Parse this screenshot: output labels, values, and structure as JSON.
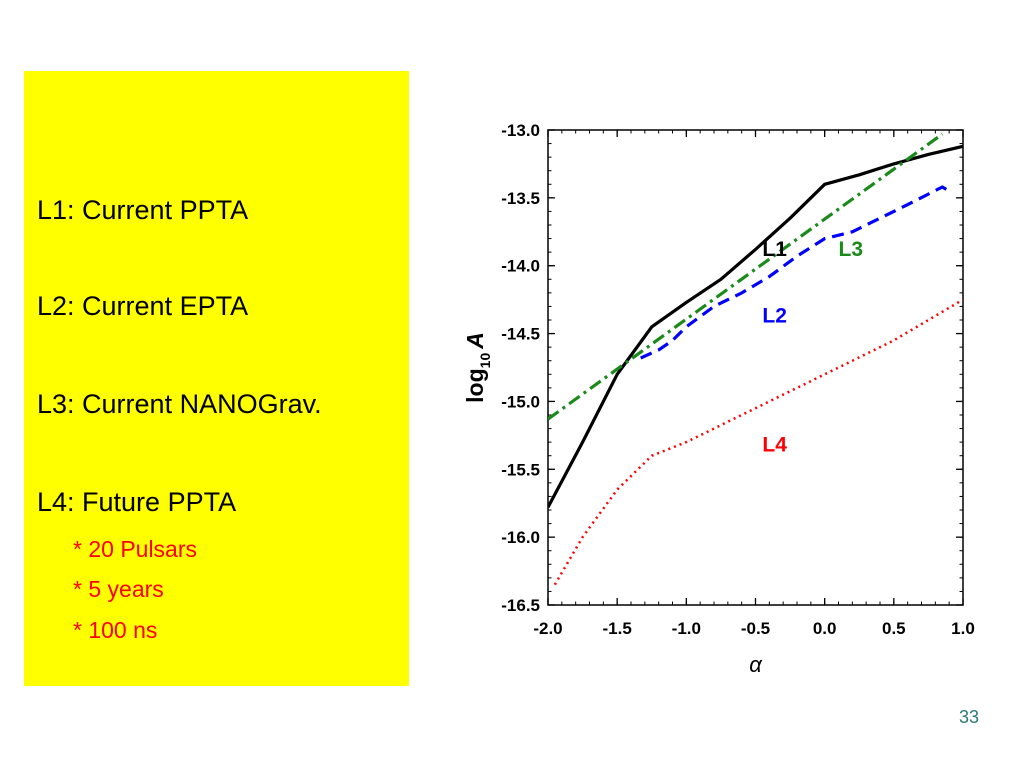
{
  "legend": {
    "lines": [
      "L1: Current PPTA",
      "L2: Current EPTA",
      "L3: Current NANOGrav.",
      "L4: Future PPTA"
    ],
    "sub_items": [
      "* 20 Pulsars",
      "* 5 years",
      "* 100 ns"
    ],
    "panel_color": "#ffff00",
    "sub_color": "#ff0000"
  },
  "slide_number": "33",
  "chart_data": {
    "type": "line",
    "xlabel": "α",
    "ylabel_main": "log",
    "ylabel_sub": "10",
    "ylabel_var": "A",
    "xlim": [
      -2.0,
      1.0
    ],
    "ylim": [
      -16.5,
      -13.0
    ],
    "x_ticks": [
      "-2.0",
      "-1.5",
      "-1.0",
      "-0.5",
      "0.0",
      "0.5",
      "1.0"
    ],
    "y_ticks": [
      "-13.0",
      "-13.5",
      "-14.0",
      "-14.5",
      "-15.0",
      "-15.5",
      "-16.0",
      "-16.5"
    ],
    "grid": false,
    "series": [
      {
        "name": "L1",
        "color": "#000000",
        "style": "solid",
        "points": [
          [
            -2.0,
            -15.78
          ],
          [
            -1.75,
            -15.3
          ],
          [
            -1.5,
            -14.8
          ],
          [
            -1.25,
            -14.45
          ],
          [
            -1.0,
            -14.27
          ],
          [
            -0.75,
            -14.1
          ],
          [
            -0.5,
            -13.88
          ],
          [
            -0.25,
            -13.65
          ],
          [
            0.0,
            -13.4
          ],
          [
            0.25,
            -13.33
          ],
          [
            0.5,
            -13.25
          ],
          [
            0.75,
            -13.18
          ],
          [
            1.0,
            -13.12
          ]
        ]
      },
      {
        "name": "L2",
        "color": "#0000ff",
        "style": "dashed",
        "points": [
          [
            -1.33,
            -14.68
          ],
          [
            -1.2,
            -14.62
          ],
          [
            -1.1,
            -14.55
          ],
          [
            -1.0,
            -14.45
          ],
          [
            -0.8,
            -14.3
          ],
          [
            -0.6,
            -14.2
          ],
          [
            -0.4,
            -14.08
          ],
          [
            -0.2,
            -13.93
          ],
          [
            0.0,
            -13.8
          ],
          [
            0.2,
            -13.75
          ],
          [
            0.4,
            -13.65
          ],
          [
            0.6,
            -13.55
          ],
          [
            0.85,
            -13.42
          ],
          [
            0.9,
            -13.45
          ]
        ]
      },
      {
        "name": "L3",
        "color": "#1a8a1a",
        "style": "dashdot",
        "points": [
          [
            -2.0,
            -15.13
          ],
          [
            0.85,
            -13.03
          ]
        ]
      },
      {
        "name": "L4",
        "color": "#ff0000",
        "style": "dotted",
        "points": [
          [
            -1.95,
            -16.35
          ],
          [
            -1.75,
            -16.0
          ],
          [
            -1.5,
            -15.65
          ],
          [
            -1.25,
            -15.4
          ],
          [
            -1.0,
            -15.3
          ],
          [
            -0.5,
            -15.05
          ],
          [
            0.0,
            -14.8
          ],
          [
            0.5,
            -14.55
          ],
          [
            1.0,
            -14.25
          ]
        ]
      }
    ],
    "labels": [
      {
        "text": "L1",
        "color": "#000000",
        "x": -0.45,
        "y": -13.93
      },
      {
        "text": "L3",
        "color": "#1a8a1a",
        "x": 0.1,
        "y": -13.93
      },
      {
        "text": "L2",
        "color": "#0000ff",
        "x": -0.45,
        "y": -14.42
      },
      {
        "text": "L4",
        "color": "#ff0000",
        "x": -0.45,
        "y": -15.37
      }
    ]
  }
}
